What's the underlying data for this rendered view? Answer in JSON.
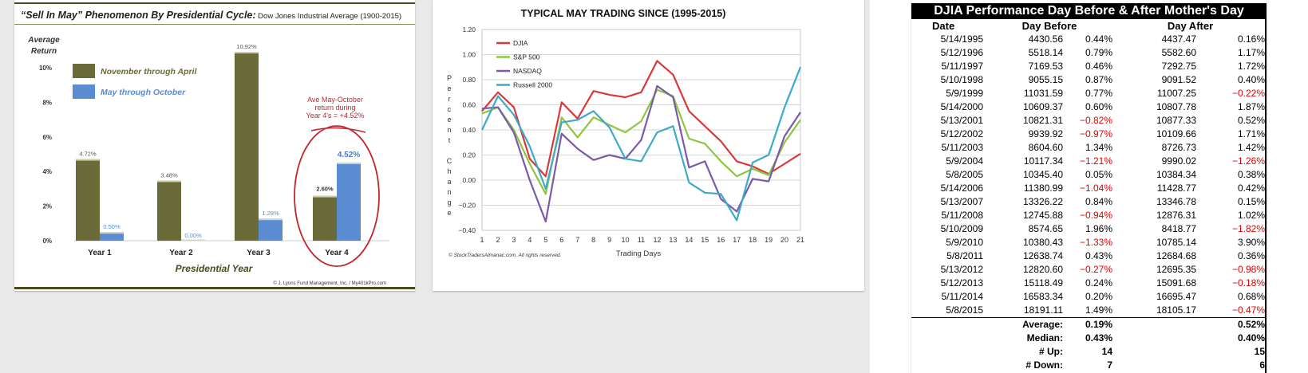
{
  "chart_data": [
    {
      "type": "bar",
      "title": "“Sell In May” Phenomenon By Presidential Cycle:",
      "subtitle": "Dow Jones Industrial Average (1900-2015)",
      "ylabel": "Average Return",
      "xlabel": "Presidential Year",
      "categories": [
        "Year 1",
        "Year 2",
        "Year 3",
        "Year 4"
      ],
      "yticks": [
        "0%",
        "2%",
        "4%",
        "6%",
        "8%",
        "10%"
      ],
      "ylim": [
        0,
        11
      ],
      "series": [
        {
          "name": "November through April",
          "color": "#6b6b3a",
          "values": [
            4.72,
            3.48,
            10.92,
            2.6
          ],
          "labels": [
            "4.72%",
            "3.48%",
            "10.92%",
            "2.60%"
          ]
        },
        {
          "name": "May through October",
          "color": "#5b8bd0",
          "values": [
            0.5,
            0.0,
            1.28,
            4.52
          ],
          "labels": [
            "0.50%",
            "0.00%",
            "1.28%",
            "4.52%"
          ]
        }
      ],
      "annotation": [
        "Ave May-October",
        "return during",
        "Year 4's = +4.52%"
      ],
      "credit": "© J. Lyons Fund Management, Inc. / My401kPro.com"
    },
    {
      "type": "line",
      "title": "TYPICAL MAY TRADING SINCE (1995-2015)",
      "xlabel": "Trading Days",
      "ylabel": "Percent Change",
      "ylabel_letters": [
        "P",
        "e",
        "r",
        "c",
        "e",
        "n",
        "t",
        "",
        "C",
        "h",
        "a",
        "n",
        "g",
        "e"
      ],
      "x": [
        1,
        2,
        3,
        4,
        5,
        6,
        7,
        8,
        9,
        10,
        11,
        12,
        13,
        14,
        15,
        16,
        17,
        18,
        19,
        20,
        21
      ],
      "ylim": [
        -0.4,
        1.2
      ],
      "yticks": [
        "1.20",
        "1.00",
        "0.80",
        "0.60",
        "0.40",
        "0.20",
        "0.00",
        "−0.20",
        "−0.40"
      ],
      "series": [
        {
          "name": "DJIA",
          "color": "#d9393a",
          "values": [
            0.55,
            0.7,
            0.58,
            0.17,
            0.03,
            0.62,
            0.49,
            0.71,
            0.68,
            0.66,
            0.7,
            0.95,
            0.84,
            0.55,
            0.43,
            0.31,
            0.15,
            0.11,
            0.05,
            0.13,
            0.21
          ]
        },
        {
          "name": "S&P 500",
          "color": "#8dc63f",
          "values": [
            0.53,
            0.58,
            0.4,
            0.13,
            -0.11,
            0.5,
            0.34,
            0.5,
            0.44,
            0.38,
            0.47,
            0.72,
            0.67,
            0.33,
            0.29,
            0.15,
            0.03,
            0.09,
            0.04,
            0.3,
            0.48
          ]
        },
        {
          "name": "NASDAQ",
          "color": "#7b5aa8",
          "values": [
            0.57,
            0.58,
            0.38,
            0.0,
            -0.33,
            0.37,
            0.25,
            0.16,
            0.2,
            0.17,
            0.32,
            0.75,
            0.66,
            0.1,
            0.15,
            -0.15,
            -0.25,
            0.01,
            -0.01,
            0.35,
            0.54
          ]
        },
        {
          "name": "Russell 2000",
          "color": "#3fa9c9",
          "values": [
            0.4,
            0.67,
            0.52,
            0.27,
            -0.07,
            0.46,
            0.48,
            0.55,
            0.42,
            0.17,
            0.15,
            0.38,
            0.43,
            -0.02,
            -0.1,
            -0.11,
            -0.32,
            0.14,
            0.2,
            0.58,
            0.9
          ]
        }
      ],
      "credit": "© StockTradersAlmanac.com. All rights reserved."
    },
    {
      "type": "table",
      "title": "DJIA Performance Day Before & After Mother's Day",
      "headers": [
        "Date",
        "Day Before",
        "Day After"
      ],
      "rows": [
        [
          "5/14/1995",
          "4430.56",
          "0.44%",
          "4437.47",
          "0.16%"
        ],
        [
          "5/12/1996",
          "5518.14",
          "0.79%",
          "5582.60",
          "1.17%"
        ],
        [
          "5/11/1997",
          "7169.53",
          "0.46%",
          "7292.75",
          "1.72%"
        ],
        [
          "5/10/1998",
          "9055.15",
          "0.87%",
          "9091.52",
          "0.40%"
        ],
        [
          "5/9/1999",
          "11031.59",
          "0.77%",
          "11007.25",
          "−0.22%"
        ],
        [
          "5/14/2000",
          "10609.37",
          "0.60%",
          "10807.78",
          "1.87%"
        ],
        [
          "5/13/2001",
          "10821.31",
          "−0.82%",
          "10877.33",
          "0.52%"
        ],
        [
          "5/12/2002",
          "9939.92",
          "−0.97%",
          "10109.66",
          "1.71%"
        ],
        [
          "5/11/2003",
          "8604.60",
          "1.34%",
          "8726.73",
          "1.42%"
        ],
        [
          "5/9/2004",
          "10117.34",
          "−1.21%",
          "9990.02",
          "−1.26%"
        ],
        [
          "5/8/2005",
          "10345.40",
          "0.05%",
          "10384.34",
          "0.38%"
        ],
        [
          "5/14/2006",
          "11380.99",
          "−1.04%",
          "11428.77",
          "0.42%"
        ],
        [
          "5/13/2007",
          "13326.22",
          "0.84%",
          "13346.78",
          "0.15%"
        ],
        [
          "5/11/2008",
          "12745.88",
          "−0.94%",
          "12876.31",
          "1.02%"
        ],
        [
          "5/10/2009",
          "8574.65",
          "1.96%",
          "8418.77",
          "−1.82%"
        ],
        [
          "5/9/2010",
          "10380.43",
          "−1.33%",
          "10785.14",
          "3.90%"
        ],
        [
          "5/8/2011",
          "12638.74",
          "0.43%",
          "12684.68",
          "0.36%"
        ],
        [
          "5/13/2012",
          "12820.60",
          "−0.27%",
          "12695.35",
          "−0.98%"
        ],
        [
          "5/12/2013",
          "15118.49",
          "0.24%",
          "15091.68",
          "−0.18%"
        ],
        [
          "5/11/2014",
          "16583.34",
          "0.20%",
          "16695.47",
          "0.68%"
        ],
        [
          "5/8/2015",
          "18191.11",
          "1.49%",
          "18105.17",
          "−0.47%"
        ]
      ],
      "summary": [
        {
          "label": "Average:",
          "before": "0.19%",
          "after": "0.52%"
        },
        {
          "label": "Median:",
          "before": "0.43%",
          "after": "0.40%"
        },
        {
          "label": "# Up:",
          "before": "14",
          "after": "15"
        },
        {
          "label": "# Down:",
          "before": "7",
          "after": "6"
        }
      ]
    }
  ]
}
